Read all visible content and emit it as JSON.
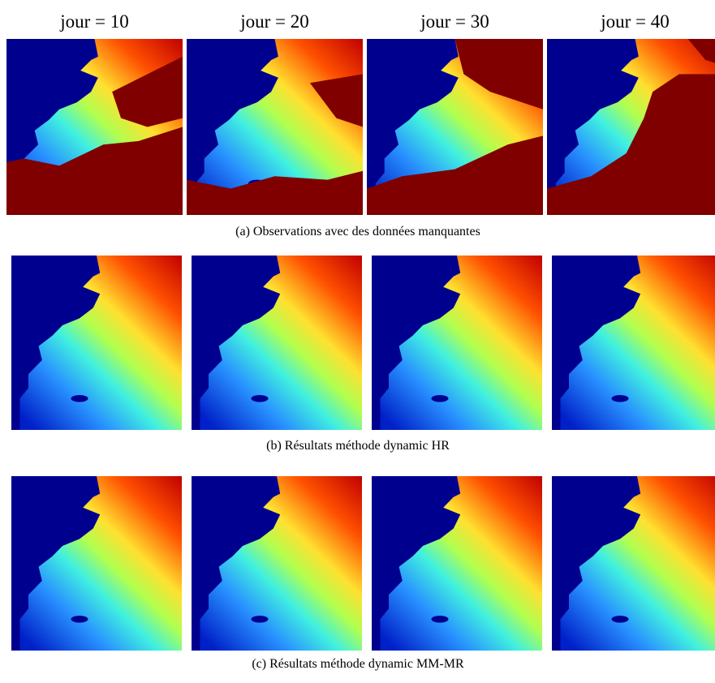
{
  "columns": [
    "jour = 10",
    "jour = 20",
    "jour = 30",
    "jour = 40"
  ],
  "rows": [
    {
      "caption": "(a)  Observations avec des données manquantes"
    },
    {
      "caption": "(b)  Résultats méthode dynamic HR"
    },
    {
      "caption": "(c)  Résultats méthode dynamic MM-MR"
    }
  ]
}
